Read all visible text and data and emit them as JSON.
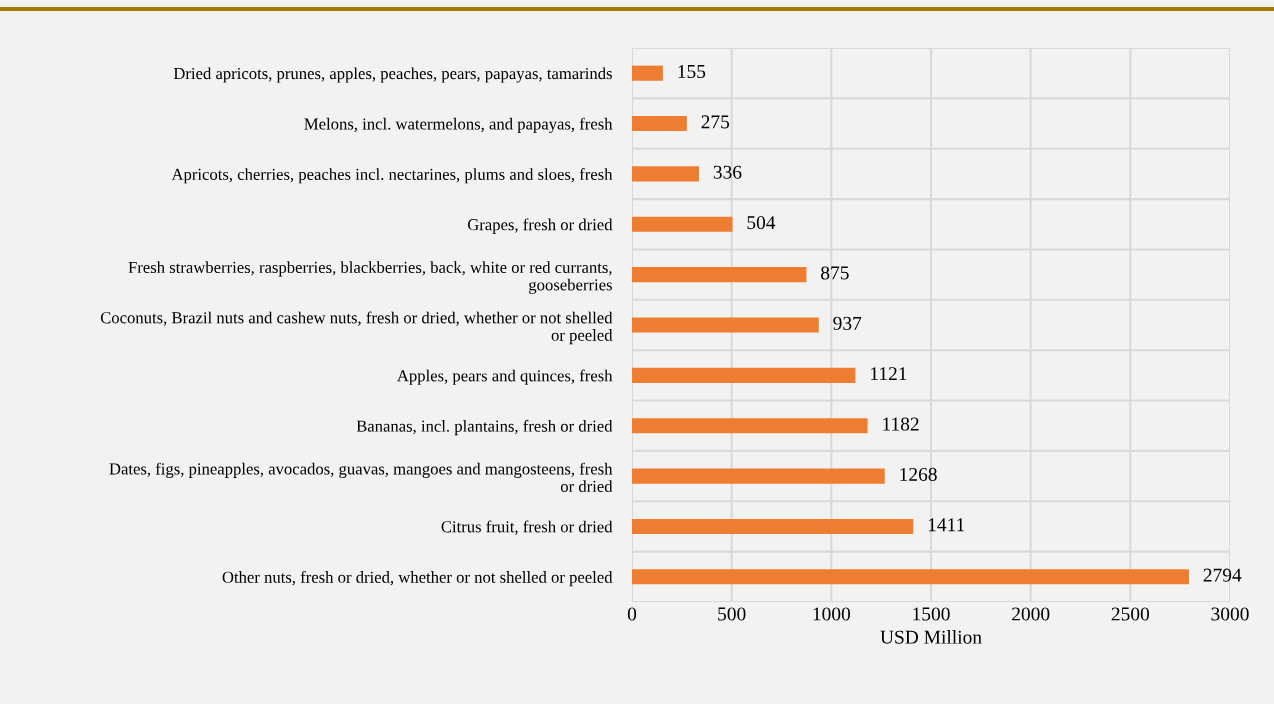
{
  "chart_data": {
    "type": "bar",
    "orientation": "horizontal",
    "xlabel": "USD Million",
    "categories": [
      "Dried apricots, prunes, apples, peaches, pears, papayas, tamarinds",
      "Melons, incl. watermelons, and papayas, fresh",
      "Apricots, cherries, peaches incl. nectarines, plums and sloes, fresh",
      "Grapes, fresh or dried",
      "Fresh strawberries, raspberries, blackberries, back, white or red currants,\ngooseberries",
      "Coconuts, Brazil nuts and cashew nuts, fresh or dried, whether or not shelled\nor peeled",
      "Apples, pears and quinces, fresh",
      "Bananas, incl. plantains, fresh or dried",
      "Dates, figs, pineapples, avocados, guavas, mangoes and mangosteens, fresh\nor dried",
      "Citrus fruit, fresh or dried",
      "Other nuts, fresh or dried, whether or not shelled or peeled"
    ],
    "values": [
      155,
      275,
      336,
      504,
      875,
      937,
      1121,
      1182,
      1268,
      1411,
      2794
    ],
    "color": "#ed7d31",
    "xlim": [
      0,
      3000
    ],
    "xticks": [
      0,
      500,
      1000,
      1500,
      2000,
      2500,
      3000
    ],
    "grid": true,
    "data_labels": true
  }
}
